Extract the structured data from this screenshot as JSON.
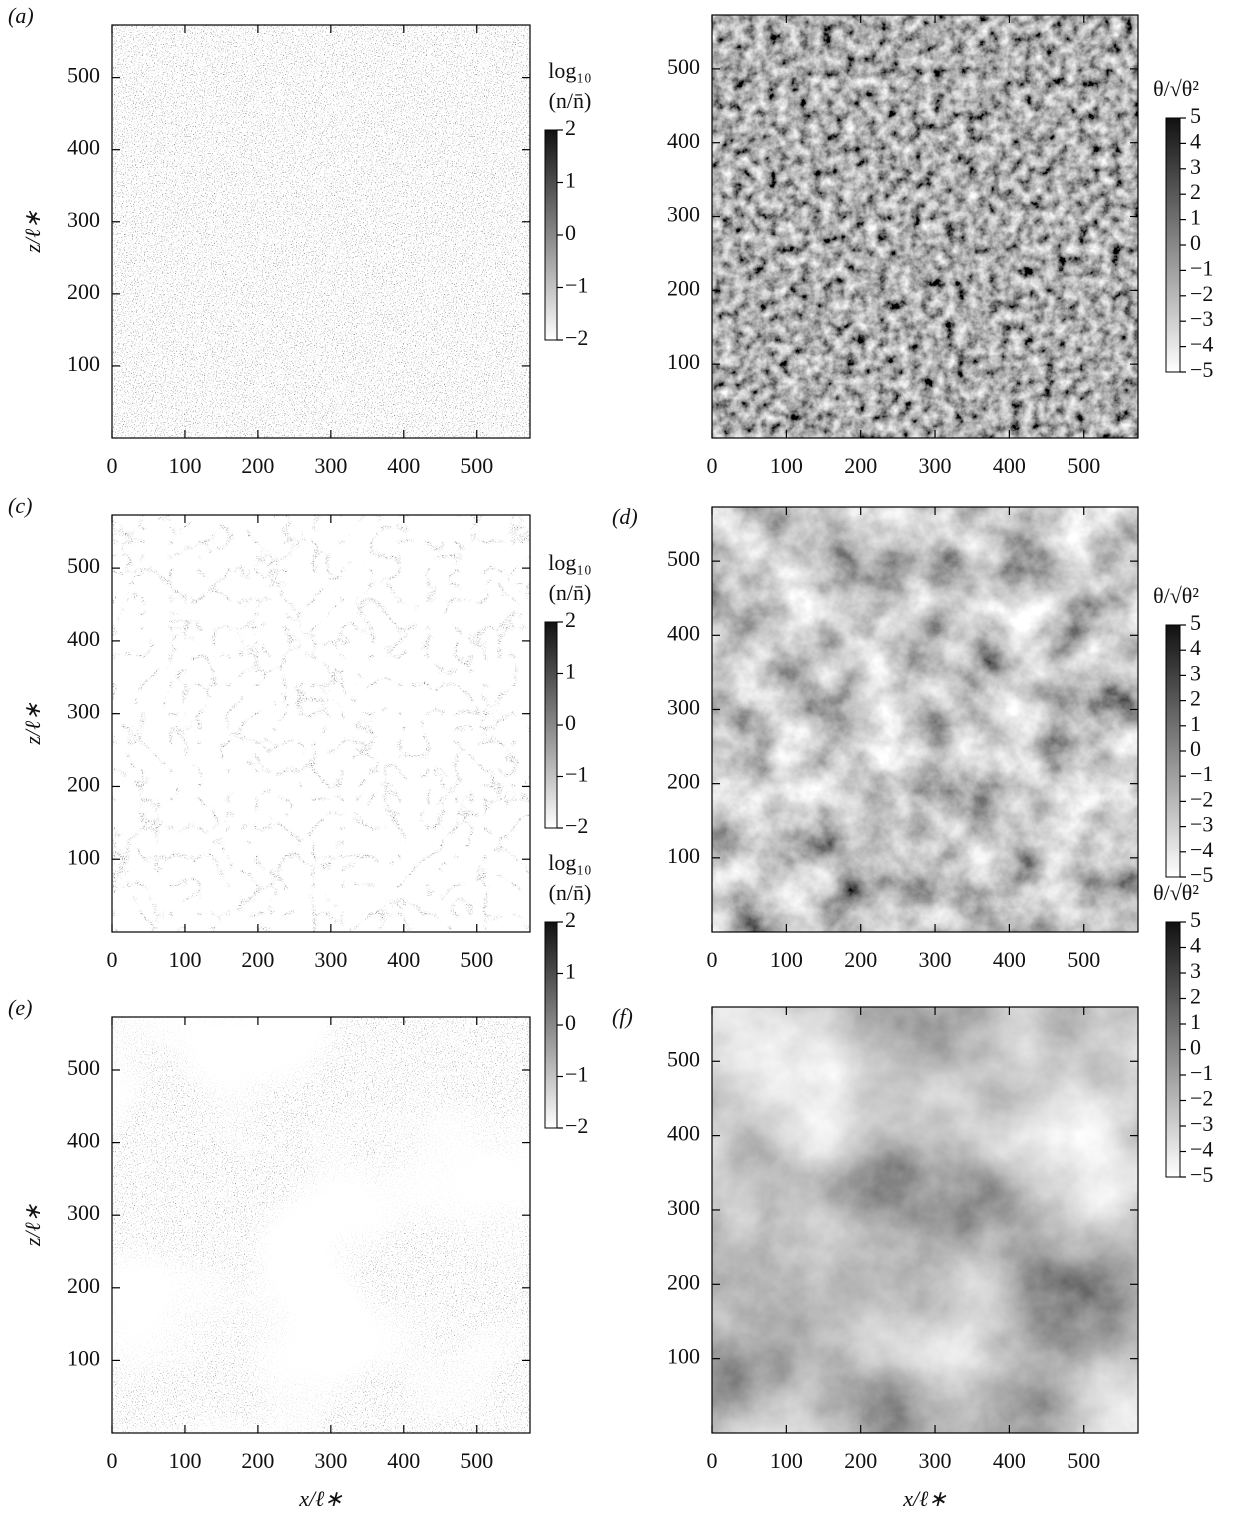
{
  "chart_data": [
    {
      "type": "heatmap",
      "label": "(a)",
      "ylabel": "z/ℓ∗",
      "xlim": [
        0,
        573
      ],
      "ylim": [
        0,
        573
      ],
      "xticks": [
        0,
        100,
        200,
        300,
        400,
        500
      ],
      "yticks": [
        100,
        200,
        300,
        400,
        500
      ],
      "colorbar_label": [
        "log₁₀",
        "(n/n̄)"
      ],
      "clim": [
        -2,
        2
      ],
      "cticks": [
        2,
        1,
        0,
        {
          "value": -1,
          "label": "−1"
        },
        {
          "value": -2,
          "label": "−2"
        }
      ]
    },
    {
      "type": "heatmap",
      "xlim": [
        0,
        573
      ],
      "ylim": [
        0,
        573
      ],
      "xticks": [
        0,
        100,
        200,
        300,
        400,
        500
      ],
      "yticks": [
        100,
        200,
        300,
        400,
        500
      ],
      "colorbar_label": [
        "θ/√θ²"
      ],
      "clim": [
        -5,
        5
      ],
      "cticks": [
        5,
        4,
        3,
        2,
        1,
        0,
        {
          "value": -1,
          "label": "−1"
        },
        {
          "value": -2,
          "label": "−2"
        },
        {
          "value": -3,
          "label": "−3"
        },
        {
          "value": -4,
          "label": "−4"
        },
        {
          "value": -5,
          "label": "−5"
        }
      ]
    },
    {
      "type": "heatmap",
      "label": "(c)",
      "ylabel": "z/ℓ∗",
      "xlim": [
        0,
        573
      ],
      "ylim": [
        0,
        573
      ],
      "xticks": [
        0,
        100,
        200,
        300,
        400,
        500
      ],
      "yticks": [
        100,
        200,
        300,
        400,
        500
      ],
      "colorbar_label": [
        "log₁₀",
        "(n/n̄)"
      ],
      "clim": [
        -2,
        2
      ],
      "cticks": [
        2,
        1,
        0,
        {
          "value": -1,
          "label": "−1"
        },
        {
          "value": -2,
          "label": "−2"
        }
      ]
    },
    {
      "type": "heatmap",
      "label": "(d)",
      "xlim": [
        0,
        573
      ],
      "ylim": [
        0,
        573
      ],
      "xticks": [
        0,
        100,
        200,
        300,
        400,
        500
      ],
      "yticks": [
        100,
        200,
        300,
        400,
        500
      ],
      "colorbar_label": [
        "θ/√θ²"
      ],
      "clim": [
        -5,
        5
      ],
      "cticks": [
        5,
        4,
        3,
        2,
        1,
        0,
        {
          "value": -1,
          "label": "−1"
        },
        {
          "value": -2,
          "label": "−2"
        },
        {
          "value": -3,
          "label": "−3"
        },
        {
          "value": -4,
          "label": "−4"
        },
        {
          "value": -5,
          "label": "−5"
        }
      ]
    },
    {
      "type": "heatmap",
      "label": "(e)",
      "ylabel": "z/ℓ∗",
      "xlabel": "x/ℓ∗",
      "xlim": [
        0,
        573
      ],
      "ylim": [
        0,
        573
      ],
      "xticks": [
        0,
        100,
        200,
        300,
        400,
        500
      ],
      "yticks": [
        100,
        200,
        300,
        400,
        500
      ],
      "colorbar_label": [
        "log₁₀",
        "(n/n̄)"
      ],
      "clim": [
        -2,
        2
      ],
      "cticks": [
        2,
        1,
        0,
        {
          "value": -1,
          "label": "−1"
        },
        {
          "value": -2,
          "label": "−2"
        }
      ]
    },
    {
      "type": "heatmap",
      "label": "(f)",
      "xlabel": "x/ℓ∗",
      "xlim": [
        0,
        573
      ],
      "ylim": [
        0,
        573
      ],
      "xticks": [
        0,
        100,
        200,
        300,
        400,
        500
      ],
      "yticks": [
        100,
        200,
        300,
        400,
        500
      ],
      "colorbar_label": [
        "θ/√θ²"
      ],
      "clim": [
        -5,
        5
      ],
      "cticks": [
        5,
        4,
        3,
        2,
        1,
        0,
        {
          "value": -1,
          "label": "−1"
        },
        {
          "value": -2,
          "label": "−2"
        },
        {
          "value": -3,
          "label": "−3"
        },
        {
          "value": -4,
          "label": "−4"
        },
        {
          "value": -5,
          "label": "−5"
        }
      ]
    }
  ]
}
